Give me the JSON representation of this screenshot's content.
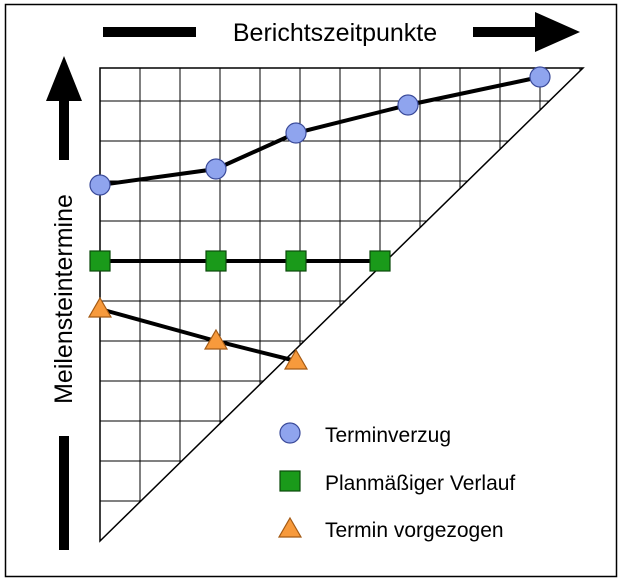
{
  "header": {
    "x_axis_label": "Berichtszeitpunkte",
    "y_axis_label": "Meilensteintermine"
  },
  "legend": {
    "items": [
      {
        "label": "Terminverzug",
        "marker": "circle-marker",
        "color": "#8fa4ee"
      },
      {
        "label": "Planmäßiger Verlauf",
        "marker": "square-marker",
        "color": "#1a9a1a"
      },
      {
        "label": "Termin vorgezogen",
        "marker": "triangle-marker",
        "color": "#f79a3c"
      }
    ]
  },
  "chart_data": {
    "type": "line",
    "grid": "on",
    "x_label": "Berichtszeitpunkte",
    "y_label": "Meilensteintermine",
    "series": [
      {
        "name": "Terminverzug",
        "marker": "circle",
        "color": "#8fa4ee",
        "points": [
          [
            0,
            8.9
          ],
          [
            2.9,
            9.3
          ],
          [
            4.9,
            10.2
          ],
          [
            7.7,
            10.9
          ],
          [
            11.0,
            11.6
          ]
        ]
      },
      {
        "name": "Planmäßiger Verlauf",
        "marker": "square",
        "color": "#1a9a1a",
        "points": [
          [
            0,
            7.0
          ],
          [
            2.9,
            7.0
          ],
          [
            4.9,
            7.0
          ],
          [
            7.0,
            7.0
          ]
        ]
      },
      {
        "name": "Termin vorgezogen",
        "marker": "triangle",
        "color": "#f79a3c",
        "points": [
          [
            0,
            5.8
          ],
          [
            2.9,
            5.0
          ],
          [
            4.9,
            4.5
          ]
        ]
      }
    ]
  }
}
